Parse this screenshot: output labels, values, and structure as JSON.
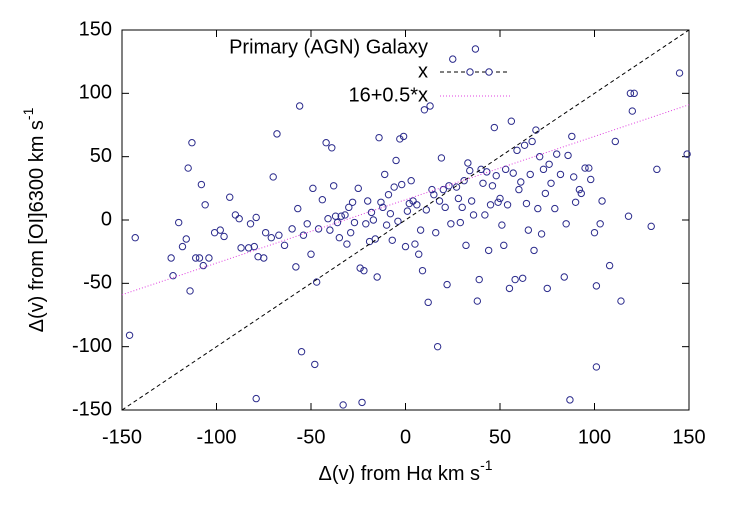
{
  "chart_data": {
    "type": "scatter",
    "legend_title": "Primary (AGN) Galaxy",
    "legend": "top-left",
    "xlabel": {
      "text": "Δ(v) from Hα km s",
      "sup": "-1"
    },
    "ylabel": {
      "text": "Δ(v) from [OI]6300 km s",
      "sup": "-1"
    },
    "xlim": [
      -150,
      150
    ],
    "ylim": [
      -150,
      150
    ],
    "xticks": [
      -150,
      -100,
      -50,
      0,
      50,
      100,
      150
    ],
    "yticks": [
      -150,
      -100,
      -50,
      0,
      50,
      100,
      150
    ],
    "series": [
      {
        "type": "scatter",
        "marker": "circle",
        "color": "#2b2b8c",
        "x": [
          -146,
          -143,
          -124,
          -123,
          -120,
          -118,
          -116,
          -115,
          -114,
          -113,
          -111,
          -109,
          -108,
          -107,
          -106,
          -104,
          -101,
          -98,
          -96,
          -93,
          -90,
          -88,
          -87,
          -83,
          -82,
          -80,
          -79,
          -79,
          -78,
          -75,
          -74,
          -71,
          -70,
          -68,
          -67,
          -64,
          -60,
          -58,
          -57,
          -56,
          -55,
          -54,
          -52,
          -50,
          -49,
          -48,
          -47,
          -46,
          -44,
          -42,
          -41,
          -40,
          -39,
          -38,
          -37,
          -36,
          -35,
          -34,
          -33,
          -32,
          -31,
          -30,
          -29,
          -28,
          -27,
          -25,
          -24,
          -23,
          -22,
          -21,
          -20,
          -19,
          -18,
          -17,
          -16,
          -15,
          -14,
          -13,
          -12,
          -11,
          -10,
          -9,
          -8,
          -7,
          -6,
          -5,
          -4,
          -3,
          -2,
          -1,
          0,
          1,
          2,
          3,
          4,
          5,
          6,
          7,
          8,
          9,
          10,
          11,
          12,
          13,
          14,
          15,
          16,
          17,
          18,
          19,
          20,
          21,
          22,
          23,
          24,
          25,
          27,
          28,
          29,
          30,
          31,
          32,
          33,
          34,
          35,
          36,
          37,
          38,
          39,
          40,
          41,
          42,
          43,
          44,
          45,
          46,
          47,
          48,
          49,
          50,
          51,
          52,
          53,
          54,
          55,
          56,
          57,
          58,
          59,
          60,
          61,
          62,
          63,
          64,
          65,
          66,
          67,
          68,
          69,
          70,
          71,
          72,
          73,
          74,
          75,
          76,
          77,
          79,
          80,
          82,
          84,
          85,
          86,
          87,
          88,
          89,
          90,
          92,
          93,
          95,
          97,
          98,
          100,
          101,
          101,
          103,
          104,
          108,
          111,
          114,
          118,
          119,
          120,
          121,
          130,
          133,
          145,
          149
        ],
        "values": [
          -91,
          -14,
          -30,
          -44,
          -2,
          -21,
          -15,
          41,
          -56,
          61,
          -30,
          -30,
          28,
          -36,
          12,
          -30,
          -10,
          -8,
          -13,
          18,
          4,
          1,
          -22,
          -22,
          -3,
          -21,
          2,
          -141,
          -29,
          -30,
          -10,
          -14,
          34,
          68,
          -12,
          -20,
          -7,
          -37,
          9,
          90,
          -104,
          -12,
          -3,
          -27,
          25,
          -114,
          -49,
          -7,
          16,
          61,
          1,
          -8,
          57,
          27,
          3,
          -2,
          -14,
          3,
          -146,
          4,
          -19,
          10,
          -10,
          14,
          -2,
          25,
          -38,
          -144,
          -40,
          -3,
          15,
          -17,
          6,
          0,
          -15,
          -45,
          65,
          14,
          10,
          36,
          -4,
          20,
          5,
          -16,
          26,
          47,
          -1,
          64,
          28,
          66,
          -21,
          7,
          13,
          31,
          15,
          -19,
          12,
          -27,
          -8,
          -40,
          87,
          8,
          -65,
          90,
          24,
          20,
          -10,
          -100,
          15,
          49,
          24,
          10,
          -51,
          27,
          -3,
          127,
          26,
          17,
          -2,
          10,
          31,
          -20,
          45,
          39,
          15,
          4,
          135,
          -64,
          -47,
          40,
          29,
          4,
          38,
          -24,
          12,
          27,
          73,
          35,
          14,
          17,
          -4,
          -20,
          40,
          12,
          -54,
          78,
          37,
          -47,
          55,
          24,
          30,
          -46,
          59,
          13,
          -8,
          36,
          62,
          -24,
          71,
          9,
          50,
          -11,
          40,
          21,
          -54,
          44,
          29,
          9,
          52,
          36,
          -45,
          -3,
          51,
          -142,
          66,
          34,
          14,
          24,
          21,
          41,
          41,
          32,
          -10,
          -52,
          -116,
          -3,
          15,
          -36,
          62,
          -64,
          3,
          100,
          86,
          100,
          -5,
          40,
          116,
          52
        ]
      },
      {
        "type": "line",
        "name": "x",
        "color": "#000000",
        "dash": "dashed",
        "marker": "circle",
        "x": [
          -150,
          150
        ],
        "values": [
          -150,
          150
        ]
      },
      {
        "type": "line",
        "name": "16+0.5*x",
        "color": "#e040e0",
        "dash": "dotted",
        "x": [
          -150,
          150
        ],
        "values": [
          -59,
          91
        ]
      }
    ]
  }
}
